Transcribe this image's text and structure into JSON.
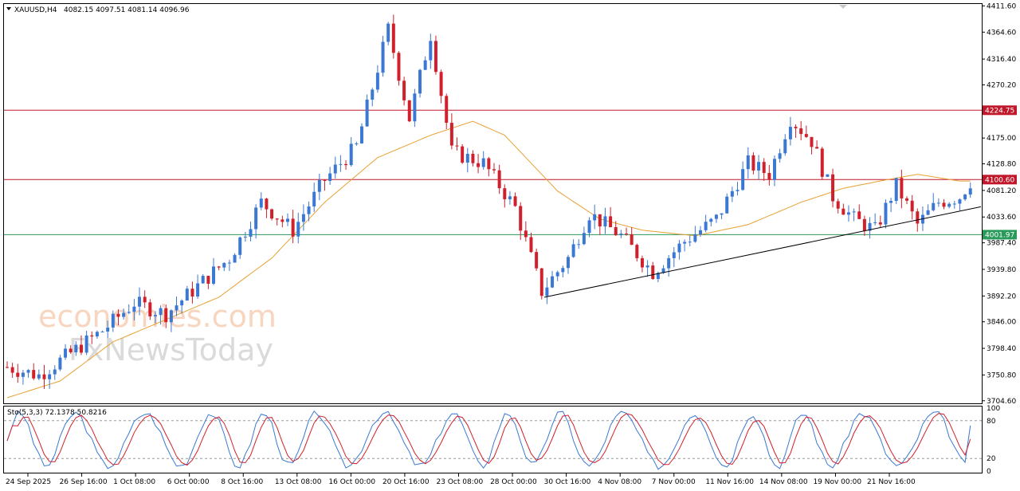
{
  "header": {
    "symbol": "XAUUSD,H4",
    "ohlc": "4082.15 4097.51 4081.14 4096.96",
    "stoch_label": "Sto(5,3,3) 72.1378 50.8216"
  },
  "watermark": {
    "line1": "economies.com",
    "line2": "FxNewsToday"
  },
  "colors": {
    "bull": "#3a78d4",
    "bear": "#d0202c",
    "ma": "#e8a030",
    "resistance": "#c0182a",
    "support": "#2a9a5a",
    "trendline": "#000000",
    "stoch_main": "#3a78d4",
    "stoch_signal": "#d0202c"
  },
  "chart_data": {
    "type": "candlestick",
    "y_ticks": [
      "4411.60",
      "4364.60",
      "4316.40",
      "4270.20",
      "4175.00",
      "4128.80",
      "4081.20",
      "4033.60",
      "3987.40",
      "3939.80",
      "3892.20",
      "3846.00",
      "3798.40",
      "3750.80",
      "3704.60"
    ],
    "ylim": [
      3700,
      4415
    ],
    "x_ticks": [
      "24 Sep 2025",
      "26 Sep 16:00",
      "1 Oct 08:00",
      "6 Oct 00:00",
      "8 Oct 16:00",
      "13 Oct 08:00",
      "16 Oct 00:00",
      "20 Oct 16:00",
      "23 Oct 08:00",
      "28 Oct 00:00",
      "30 Oct 16:00",
      "4 Nov 08:00",
      "7 Nov 00:00",
      "11 Nov 16:00",
      "14 Nov 08:00",
      "19 Nov 00:00",
      "21 Nov 16:00"
    ],
    "levels": [
      {
        "label": "4224.75",
        "value": 4224.75,
        "color": "#c0182a"
      },
      {
        "label": "4100.60",
        "value": 4100.6,
        "color": "#c0182a"
      },
      {
        "label": "4001.97",
        "value": 4001.97,
        "color": "#2a9a5a"
      }
    ],
    "trendline": {
      "x0": 101.5,
      "y0": 3890,
      "x1": 184,
      "y1": 4052
    },
    "close_path": [
      [
        0,
        3765
      ],
      [
        6,
        3750
      ],
      [
        12,
        3790
      ],
      [
        18,
        3830
      ],
      [
        24,
        3880
      ],
      [
        30,
        3860
      ],
      [
        36,
        3910
      ],
      [
        42,
        3960
      ],
      [
        48,
        4060
      ],
      [
        54,
        4010
      ],
      [
        60,
        4100
      ],
      [
        66,
        4160
      ],
      [
        72,
        4370
      ],
      [
        76,
        4210
      ],
      [
        80,
        4360
      ],
      [
        84,
        4150
      ],
      [
        90,
        4130
      ],
      [
        96,
        4050
      ],
      [
        101,
        3900
      ],
      [
        106,
        3960
      ],
      [
        110,
        4040
      ],
      [
        116,
        4000
      ],
      [
        122,
        3935
      ],
      [
        128,
        3990
      ],
      [
        134,
        4030
      ],
      [
        140,
        4130
      ],
      [
        144,
        4110
      ],
      [
        148,
        4210
      ],
      [
        152,
        4170
      ],
      [
        156,
        4070
      ],
      [
        160,
        4030
      ],
      [
        164,
        4010
      ],
      [
        168,
        4090
      ],
      [
        172,
        4020
      ],
      [
        176,
        4060
      ],
      [
        180,
        4070
      ],
      [
        182,
        4097
      ]
    ],
    "ma_path": [
      [
        0,
        3710
      ],
      [
        10,
        3740
      ],
      [
        20,
        3810
      ],
      [
        30,
        3850
      ],
      [
        40,
        3890
      ],
      [
        50,
        3960
      ],
      [
        60,
        4060
      ],
      [
        70,
        4140
      ],
      [
        80,
        4180
      ],
      [
        88,
        4205
      ],
      [
        94,
        4180
      ],
      [
        104,
        4080
      ],
      [
        112,
        4030
      ],
      [
        120,
        4010
      ],
      [
        130,
        4000
      ],
      [
        140,
        4020
      ],
      [
        150,
        4060
      ],
      [
        158,
        4085
      ],
      [
        166,
        4100
      ],
      [
        172,
        4110
      ],
      [
        180,
        4098
      ]
    ],
    "stochastic": {
      "levels": [
        80,
        20
      ],
      "ticks": [
        "100",
        "80",
        "20",
        "0"
      ],
      "main_last": 72.1378,
      "signal_last": 50.8216
    }
  }
}
